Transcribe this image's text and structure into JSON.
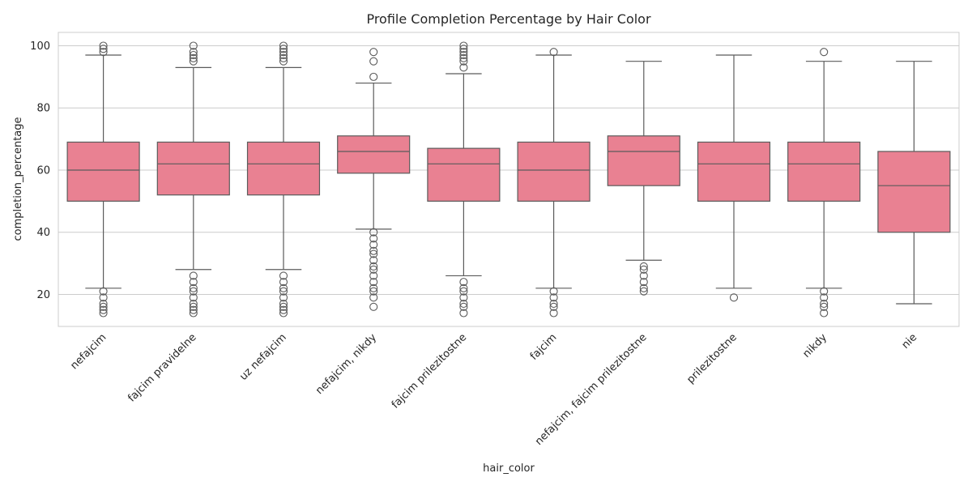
{
  "chart_data": {
    "type": "box",
    "title": "Profile Completion Percentage by Hair Color",
    "xlabel": "hair_color",
    "ylabel": "completion_percentage",
    "ylim": [
      9.7,
      104.3
    ],
    "yticks": [
      20,
      40,
      60,
      80,
      100
    ],
    "grid": "horizontal",
    "box_color": "#e98192",
    "categories": [
      "nefajcim",
      "fajcim pravidelne",
      "uz nefajcim",
      "nefajcim, nikdy",
      "fajcim prilezitostne",
      "fajcim",
      "nefajcim, fajcim prilezitostne",
      "prilezitostne",
      "nikdy",
      "nie"
    ],
    "boxes": [
      {
        "whisker_low": 22,
        "q1": 50,
        "median": 60,
        "q3": 69,
        "whisker_high": 97,
        "outliers": [
          14,
          15,
          16,
          17,
          19,
          21,
          98,
          99,
          100
        ]
      },
      {
        "whisker_low": 28,
        "q1": 52,
        "median": 62,
        "q3": 69,
        "whisker_high": 93,
        "outliers": [
          14,
          15,
          16,
          17,
          19,
          21,
          22,
          24,
          26,
          95,
          96,
          97,
          98,
          100
        ]
      },
      {
        "whisker_low": 28,
        "q1": 52,
        "median": 62,
        "q3": 69,
        "whisker_high": 93,
        "outliers": [
          14,
          15,
          16,
          17,
          19,
          21,
          22,
          24,
          26,
          95,
          96,
          97,
          98,
          99,
          100
        ]
      },
      {
        "whisker_low": 41,
        "q1": 59,
        "median": 66,
        "q3": 71,
        "whisker_high": 88,
        "outliers": [
          16,
          19,
          21,
          22,
          24,
          26,
          28,
          29,
          31,
          33,
          34,
          36,
          38,
          40,
          90,
          95,
          98
        ]
      },
      {
        "whisker_low": 26,
        "q1": 50,
        "median": 62,
        "q3": 67,
        "whisker_high": 91,
        "outliers": [
          14,
          16,
          17,
          19,
          21,
          22,
          24,
          93,
          95,
          96,
          97,
          98,
          99,
          100
        ]
      },
      {
        "whisker_low": 22,
        "q1": 50,
        "median": 60,
        "q3": 69,
        "whisker_high": 97,
        "outliers": [
          14,
          16,
          17,
          19,
          21,
          98
        ]
      },
      {
        "whisker_low": 31,
        "q1": 55,
        "median": 66,
        "q3": 71,
        "whisker_high": 95,
        "outliers": [
          21,
          22,
          24,
          26,
          28,
          29
        ]
      },
      {
        "whisker_low": 22,
        "q1": 50,
        "median": 62,
        "q3": 69,
        "whisker_high": 97,
        "outliers": [
          19
        ]
      },
      {
        "whisker_low": 22,
        "q1": 50,
        "median": 62,
        "q3": 69,
        "whisker_high": 95,
        "outliers": [
          14,
          16,
          17,
          19,
          21,
          98
        ]
      },
      {
        "whisker_low": 17,
        "q1": 40,
        "median": 55,
        "q3": 66,
        "whisker_high": 95,
        "outliers": []
      }
    ]
  }
}
